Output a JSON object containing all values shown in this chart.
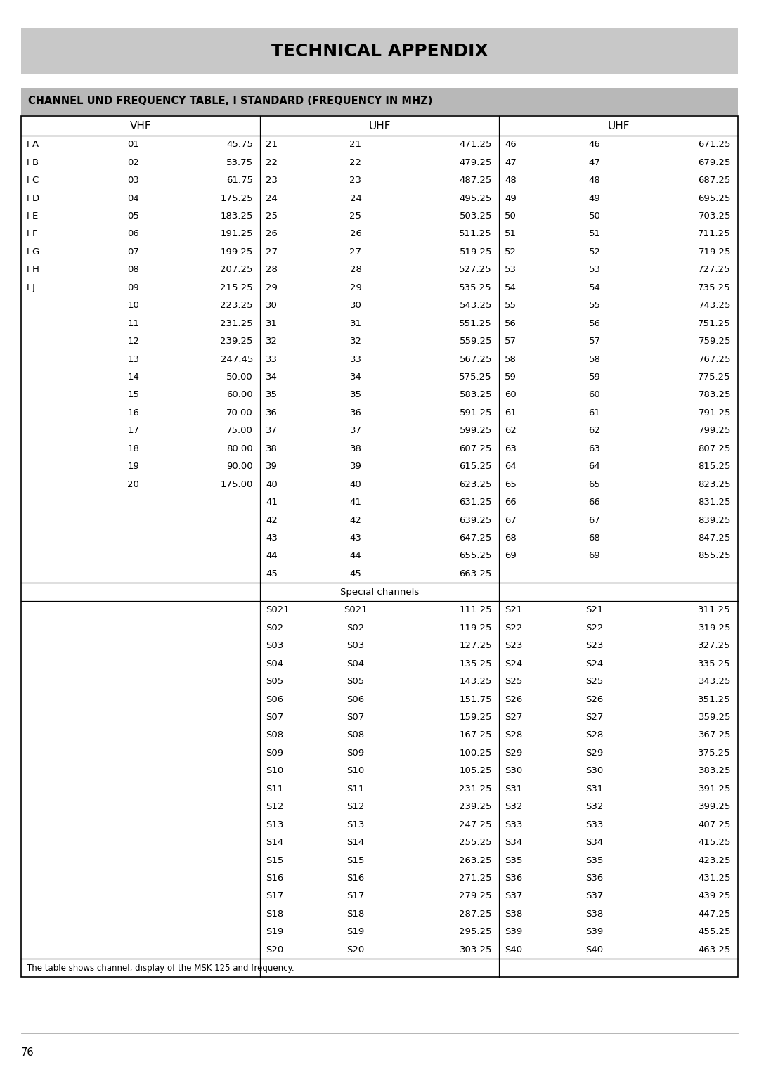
{
  "title": "TECHNICAL APPENDIX",
  "subtitle": "CHANNEL UND FREQUENCY TABLE, I STANDARD (FREQUENCY IN MHZ)",
  "footer": "The table shows channel, display of the MSK 125 and frequency.",
  "page_number": "76",
  "vhf_rows": [
    [
      "I A",
      "01",
      "45.75"
    ],
    [
      "I B",
      "02",
      "53.75"
    ],
    [
      "I C",
      "03",
      "61.75"
    ],
    [
      "I D",
      "04",
      "175.25"
    ],
    [
      "I E",
      "05",
      "183.25"
    ],
    [
      "I F",
      "06",
      "191.25"
    ],
    [
      "I G",
      "07",
      "199.25"
    ],
    [
      "I H",
      "08",
      "207.25"
    ],
    [
      "I J",
      "09",
      "215.25"
    ],
    [
      "",
      "10",
      "223.25"
    ],
    [
      "",
      "11",
      "231.25"
    ],
    [
      "",
      "12",
      "239.25"
    ],
    [
      "",
      "13",
      "247.45"
    ],
    [
      "",
      "14",
      "50.00"
    ],
    [
      "",
      "15",
      "60.00"
    ],
    [
      "",
      "16",
      "70.00"
    ],
    [
      "",
      "17",
      "75.00"
    ],
    [
      "",
      "18",
      "80.00"
    ],
    [
      "",
      "19",
      "90.00"
    ],
    [
      "",
      "20",
      "175.00"
    ]
  ],
  "uhf1_rows": [
    [
      "21",
      "21",
      "471.25"
    ],
    [
      "22",
      "22",
      "479.25"
    ],
    [
      "23",
      "23",
      "487.25"
    ],
    [
      "24",
      "24",
      "495.25"
    ],
    [
      "25",
      "25",
      "503.25"
    ],
    [
      "26",
      "26",
      "511.25"
    ],
    [
      "27",
      "27",
      "519.25"
    ],
    [
      "28",
      "28",
      "527.25"
    ],
    [
      "29",
      "29",
      "535.25"
    ],
    [
      "30",
      "30",
      "543.25"
    ],
    [
      "31",
      "31",
      "551.25"
    ],
    [
      "32",
      "32",
      "559.25"
    ],
    [
      "33",
      "33",
      "567.25"
    ],
    [
      "34",
      "34",
      "575.25"
    ],
    [
      "35",
      "35",
      "583.25"
    ],
    [
      "36",
      "36",
      "591.25"
    ],
    [
      "37",
      "37",
      "599.25"
    ],
    [
      "38",
      "38",
      "607.25"
    ],
    [
      "39",
      "39",
      "615.25"
    ],
    [
      "40",
      "40",
      "623.25"
    ],
    [
      "41",
      "41",
      "631.25"
    ],
    [
      "42",
      "42",
      "639.25"
    ],
    [
      "43",
      "43",
      "647.25"
    ],
    [
      "44",
      "44",
      "655.25"
    ],
    [
      "45",
      "45",
      "663.25"
    ]
  ],
  "uhf2_rows": [
    [
      "46",
      "46",
      "671.25"
    ],
    [
      "47",
      "47",
      "679.25"
    ],
    [
      "48",
      "48",
      "687.25"
    ],
    [
      "49",
      "49",
      "695.25"
    ],
    [
      "50",
      "50",
      "703.25"
    ],
    [
      "51",
      "51",
      "711.25"
    ],
    [
      "52",
      "52",
      "719.25"
    ],
    [
      "53",
      "53",
      "727.25"
    ],
    [
      "54",
      "54",
      "735.25"
    ],
    [
      "55",
      "55",
      "743.25"
    ],
    [
      "56",
      "56",
      "751.25"
    ],
    [
      "57",
      "57",
      "759.25"
    ],
    [
      "58",
      "58",
      "767.25"
    ],
    [
      "59",
      "59",
      "775.25"
    ],
    [
      "60",
      "60",
      "783.25"
    ],
    [
      "61",
      "61",
      "791.25"
    ],
    [
      "62",
      "62",
      "799.25"
    ],
    [
      "63",
      "63",
      "807.25"
    ],
    [
      "64",
      "64",
      "815.25"
    ],
    [
      "65",
      "65",
      "823.25"
    ],
    [
      "66",
      "66",
      "831.25"
    ],
    [
      "67",
      "67",
      "839.25"
    ],
    [
      "68",
      "68",
      "847.25"
    ],
    [
      "69",
      "69",
      "855.25"
    ]
  ],
  "special_left_rows": [
    [
      "S021",
      "S021",
      "111.25"
    ],
    [
      "S02",
      "S02",
      "119.25"
    ],
    [
      "S03",
      "S03",
      "127.25"
    ],
    [
      "S04",
      "S04",
      "135.25"
    ],
    [
      "S05",
      "S05",
      "143.25"
    ],
    [
      "S06",
      "S06",
      "151.75"
    ],
    [
      "S07",
      "S07",
      "159.25"
    ],
    [
      "S08",
      "S08",
      "167.25"
    ],
    [
      "S09",
      "S09",
      "100.25"
    ],
    [
      "S10",
      "S10",
      "105.25"
    ],
    [
      "S11",
      "S11",
      "231.25"
    ],
    [
      "S12",
      "S12",
      "239.25"
    ],
    [
      "S13",
      "S13",
      "247.25"
    ],
    [
      "S14",
      "S14",
      "255.25"
    ],
    [
      "S15",
      "S15",
      "263.25"
    ],
    [
      "S16",
      "S16",
      "271.25"
    ],
    [
      "S17",
      "S17",
      "279.25"
    ],
    [
      "S18",
      "S18",
      "287.25"
    ],
    [
      "S19",
      "S19",
      "295.25"
    ],
    [
      "S20",
      "S20",
      "303.25"
    ]
  ],
  "special_right_rows": [
    [
      "S21",
      "S21",
      "311.25"
    ],
    [
      "S22",
      "S22",
      "319.25"
    ],
    [
      "S23",
      "S23",
      "327.25"
    ],
    [
      "S24",
      "S24",
      "335.25"
    ],
    [
      "S25",
      "S25",
      "343.25"
    ],
    [
      "S26",
      "S26",
      "351.25"
    ],
    [
      "S27",
      "S27",
      "359.25"
    ],
    [
      "S28",
      "S28",
      "367.25"
    ],
    [
      "S29",
      "S29",
      "375.25"
    ],
    [
      "S30",
      "S30",
      "383.25"
    ],
    [
      "S31",
      "S31",
      "391.25"
    ],
    [
      "S32",
      "S32",
      "399.25"
    ],
    [
      "S33",
      "S33",
      "407.25"
    ],
    [
      "S34",
      "S34",
      "415.25"
    ],
    [
      "S35",
      "S35",
      "423.25"
    ],
    [
      "S36",
      "S36",
      "431.25"
    ],
    [
      "S37",
      "S37",
      "439.25"
    ],
    [
      "S38",
      "S38",
      "447.25"
    ],
    [
      "S39",
      "S39",
      "455.25"
    ],
    [
      "S40",
      "S40",
      "463.25"
    ]
  ],
  "bg_title": "#c8c8c8",
  "bg_subtitle": "#b8b8b8",
  "bg_white": "#ffffff",
  "text_color": "#000000",
  "border_color": "#000000"
}
